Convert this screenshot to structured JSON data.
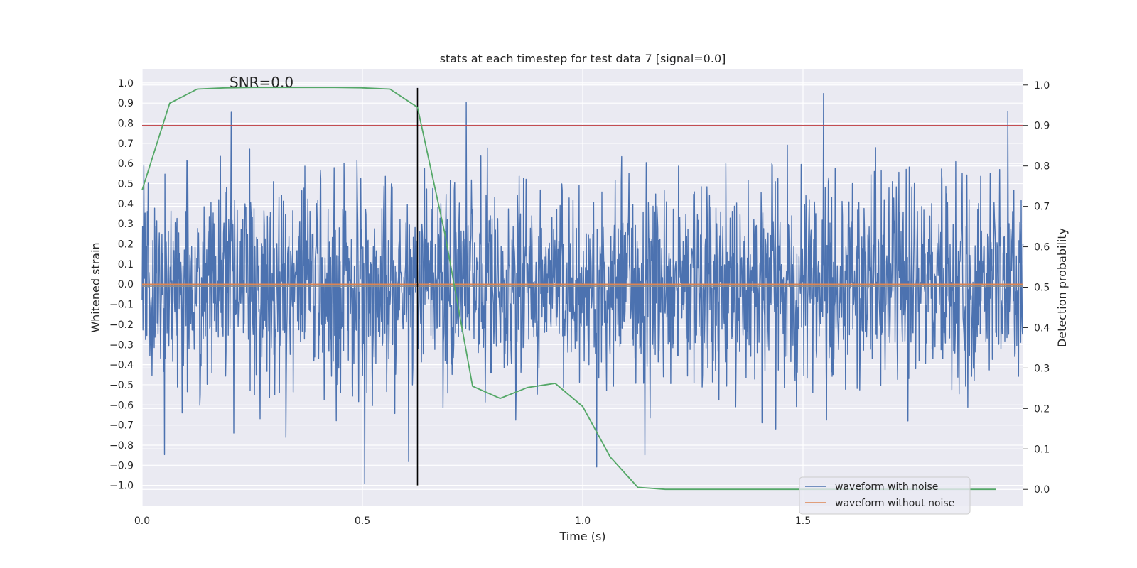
{
  "chart_data": {
    "type": "line",
    "title": "stats at each timestep for test data 7 [signal=0.0]",
    "xlabel": "Time (s)",
    "ylabel": "Whitened strain",
    "y2label": "Detection probability",
    "annotation": "SNR=0.0",
    "xlim": [
      0.0,
      2.0
    ],
    "ylim": [
      -1.1,
      1.07
    ],
    "y2lim": [
      -0.04,
      1.04
    ],
    "xticks": [
      0.0,
      0.5,
      1.0,
      1.5
    ],
    "xtick_labels": [
      "0.0",
      "0.5",
      "1.0",
      "1.5"
    ],
    "yticks": [
      1.0,
      0.9,
      0.8,
      0.7,
      0.6,
      0.5,
      0.4,
      0.3,
      0.2,
      0.1,
      0.0,
      -0.1,
      -0.2,
      -0.3,
      -0.4,
      -0.5,
      -0.6,
      -0.7,
      -0.8,
      -0.9,
      -1.0
    ],
    "ytick_labels": [
      "1.0",
      "0.9",
      "0.8",
      "0.7",
      "0.6",
      "0.5",
      "0.4",
      "0.3",
      "0.2",
      "0.1",
      "0.0",
      "−0.1",
      "−0.2",
      "−0.3",
      "−0.4",
      "−0.5",
      "−0.6",
      "−0.7",
      "−0.8",
      "−0.9",
      "−1.0"
    ],
    "y2ticks": [
      1.0,
      0.9,
      0.8,
      0.7,
      0.6,
      0.5,
      0.4,
      0.3,
      0.2,
      0.1,
      0.0
    ],
    "y2tick_labels": [
      "1.0",
      "0.9",
      "0.8",
      "0.7",
      "0.6",
      "0.5",
      "0.4",
      "0.3",
      "0.2",
      "0.1",
      "0.0"
    ],
    "grid": true,
    "legend_position": "bottom-right",
    "series": [
      {
        "name": "waveform with noise",
        "color": "#4c72b0",
        "axis": "left",
        "description": "whitened noisy strain, roughly Gaussian with std ~0.25, range about -1.0 to 1.0",
        "x_range": [
          0.0,
          2.0
        ],
        "num_samples": 2048,
        "noise_std": 0.26
      },
      {
        "name": "waveform without noise",
        "color": "#dd8452",
        "axis": "left",
        "x": [
          0.0,
          2.0
        ],
        "y": [
          0.0,
          0.0
        ]
      },
      {
        "name": "detection probability",
        "color": "#55a868",
        "axis": "right",
        "x": [
          0.0,
          0.0625,
          0.125,
          0.1875,
          0.25,
          0.3125,
          0.375,
          0.4375,
          0.5,
          0.5625,
          0.625,
          0.6875,
          0.75,
          0.8125,
          0.875,
          0.9375,
          1.0,
          1.0625,
          1.125,
          1.1875,
          1.25,
          1.3125,
          1.375,
          1.4375,
          1.5,
          1.5625,
          1.625,
          1.6875,
          1.75,
          1.8125,
          1.875,
          1.9375
        ],
        "y": [
          0.74,
          0.955,
          0.99,
          0.993,
          0.994,
          0.994,
          0.994,
          0.994,
          0.993,
          0.99,
          0.945,
          0.63,
          0.255,
          0.225,
          0.252,
          0.262,
          0.205,
          0.08,
          0.005,
          0.0,
          0.0,
          0.0,
          0.0,
          0.0,
          0.0,
          0.0,
          0.0,
          0.0,
          0.0,
          0.0,
          0.0,
          0.0
        ]
      }
    ],
    "reference_lines": [
      {
        "name": "threshold",
        "color": "#c44e52",
        "axis": "right",
        "orientation": "horizontal",
        "value": 0.9
      },
      {
        "name": "zero-line",
        "color": "#8c8c8c",
        "axis": "left",
        "orientation": "horizontal",
        "value": -0.01
      },
      {
        "name": "marker",
        "color": "#000000",
        "axis": "left",
        "orientation": "vertical",
        "value": 0.625,
        "y_from": -1.0,
        "y_to": 0.975
      }
    ]
  }
}
